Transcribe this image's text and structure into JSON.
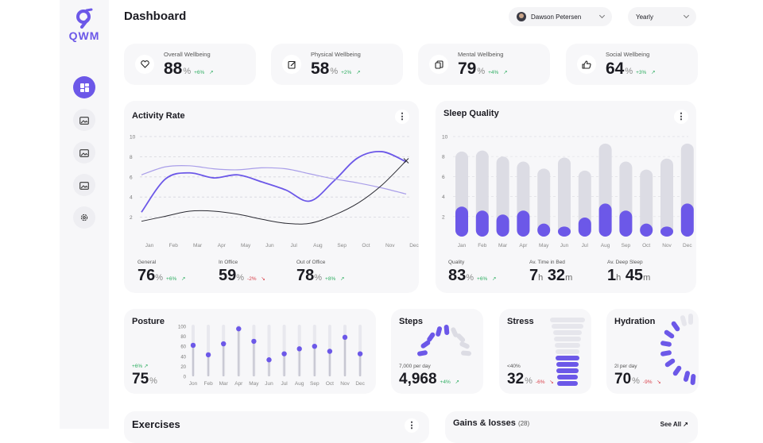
{
  "app": {
    "logo_text": "QWM"
  },
  "header": {
    "title": "Dashboard",
    "user_name": "Dawson Petersen",
    "period": "Yearly"
  },
  "sidebar": {
    "items": [
      {
        "name": "dashboard",
        "icon": "grid-icon",
        "active": true
      },
      {
        "name": "folder-1",
        "icon": "image-folder-icon"
      },
      {
        "name": "folder-2",
        "icon": "image-folder-icon"
      },
      {
        "name": "folder-3",
        "icon": "image-folder-icon"
      },
      {
        "name": "settings",
        "icon": "gear-icon"
      }
    ]
  },
  "stats": [
    {
      "label": "Overall Wellbeing",
      "value": "88",
      "unit": "%",
      "delta": "+6%",
      "icon": "heart-icon"
    },
    {
      "label": "Physical Wellbeing",
      "value": "58",
      "unit": "%",
      "delta": "+2%",
      "icon": "edit-icon"
    },
    {
      "label": "Mental Wellbeing",
      "value": "79",
      "unit": "%",
      "delta": "+4%",
      "icon": "copy-icon"
    },
    {
      "label": "Social Wellbeing",
      "value": "64",
      "unit": "%",
      "delta": "+3%",
      "icon": "thumbs-up-icon"
    }
  ],
  "activity": {
    "title": "Activity Rate",
    "metrics": [
      {
        "label": "General",
        "value": "76",
        "unit": "%",
        "delta": "+6%",
        "neg": false
      },
      {
        "label": "In Office",
        "value": "59",
        "unit": "%",
        "delta": "-2%",
        "neg": true
      },
      {
        "label": "Out of Office",
        "value": "78",
        "unit": "%",
        "delta": "+8%",
        "neg": false
      }
    ]
  },
  "sleep": {
    "title": "Sleep Quality",
    "quality_label": "Quality",
    "quality_value": "83",
    "quality_unit": "%",
    "quality_delta": "+6%",
    "bed_label": "Av. Time in Bed",
    "bed_h": "7",
    "bed_h_unit": "h",
    "bed_m": "32",
    "bed_m_unit": "m",
    "deep_label": "Av. Deep Sleep",
    "deep_h": "1",
    "deep_h_unit": "h",
    "deep_m": "45",
    "deep_m_unit": "m"
  },
  "posture": {
    "title": "Posture",
    "delta": "+6%",
    "value": "75",
    "unit": "%"
  },
  "steps": {
    "title": "Steps",
    "sub": "7,000 per day",
    "value": "4,968",
    "delta": "+4%"
  },
  "stress": {
    "title": "Stress",
    "sub": "<40%",
    "value": "32",
    "unit": "%",
    "delta": "-6%"
  },
  "hydration": {
    "title": "Hydration",
    "sub": "2l per day",
    "value": "70",
    "unit": "%",
    "delta": "-9%"
  },
  "exercises": {
    "title": "Exercises"
  },
  "gains": {
    "title": "Gains & losses",
    "count": "(28)",
    "see_all": "See All"
  },
  "colors": {
    "accent": "#6c58e8",
    "accent_light": "#a99ee9",
    "bar_bg": "#dcdce4",
    "positive": "#2fae62",
    "negative": "#d9414b"
  },
  "chart_data": [
    {
      "type": "line",
      "title": "Activity Rate",
      "categories": [
        "Jan",
        "Feb",
        "Mar",
        "Apr",
        "May",
        "Jun",
        "Jul",
        "Aug",
        "Sep",
        "Oct",
        "Nov",
        "Dec"
      ],
      "ylim": [
        0,
        10
      ],
      "yticks": [
        2,
        4,
        6,
        8,
        10
      ],
      "series": [
        {
          "values": [
            2.5,
            5.8,
            6.4,
            5.9,
            6.2,
            5.5,
            4.7,
            3.6,
            5.6,
            7.9,
            8.5,
            7.5
          ]
        },
        {
          "values": [
            6.2,
            7.0,
            7.1,
            6.8,
            6.7,
            6.9,
            6.8,
            6.3,
            5.8,
            5.4,
            4.9,
            4.3
          ]
        },
        {
          "values": [
            1.6,
            2.1,
            2.6,
            2.6,
            2.3,
            1.8,
            1.4,
            1.4,
            2.2,
            3.4,
            5.2,
            7.6
          ]
        }
      ]
    },
    {
      "type": "bar",
      "title": "Sleep Quality",
      "categories": [
        "Jan",
        "Feb",
        "Mar",
        "Apr",
        "May",
        "Jun",
        "Jul",
        "Aug",
        "Sep",
        "Oct",
        "Nov",
        "Dec"
      ],
      "ylim": [
        0,
        10
      ],
      "yticks": [
        2,
        4,
        6,
        8,
        10
      ],
      "series": [
        {
          "values": [
            8.5,
            8.6,
            8.0,
            7.5,
            6.8,
            7.9,
            6.6,
            9.3,
            7.5,
            6.7,
            7.8,
            9.3
          ]
        },
        {
          "values": [
            3.0,
            2.6,
            2.2,
            2.6,
            1.3,
            1.0,
            1.9,
            3.3,
            2.6,
            1.3,
            1.0,
            3.3
          ]
        }
      ]
    },
    {
      "type": "scatter",
      "title": "Posture",
      "categories": [
        "Jon",
        "Feb",
        "Mar",
        "Apr",
        "May",
        "Jun",
        "Jul",
        "Aug",
        "Sep",
        "Oct",
        "Nov",
        "Dec"
      ],
      "ylim": [
        0,
        100
      ],
      "yticks": [
        0,
        20,
        40,
        60,
        80,
        100
      ],
      "values": [
        62,
        43,
        65,
        95,
        70,
        33,
        45,
        55,
        60,
        50,
        78,
        45
      ]
    }
  ]
}
